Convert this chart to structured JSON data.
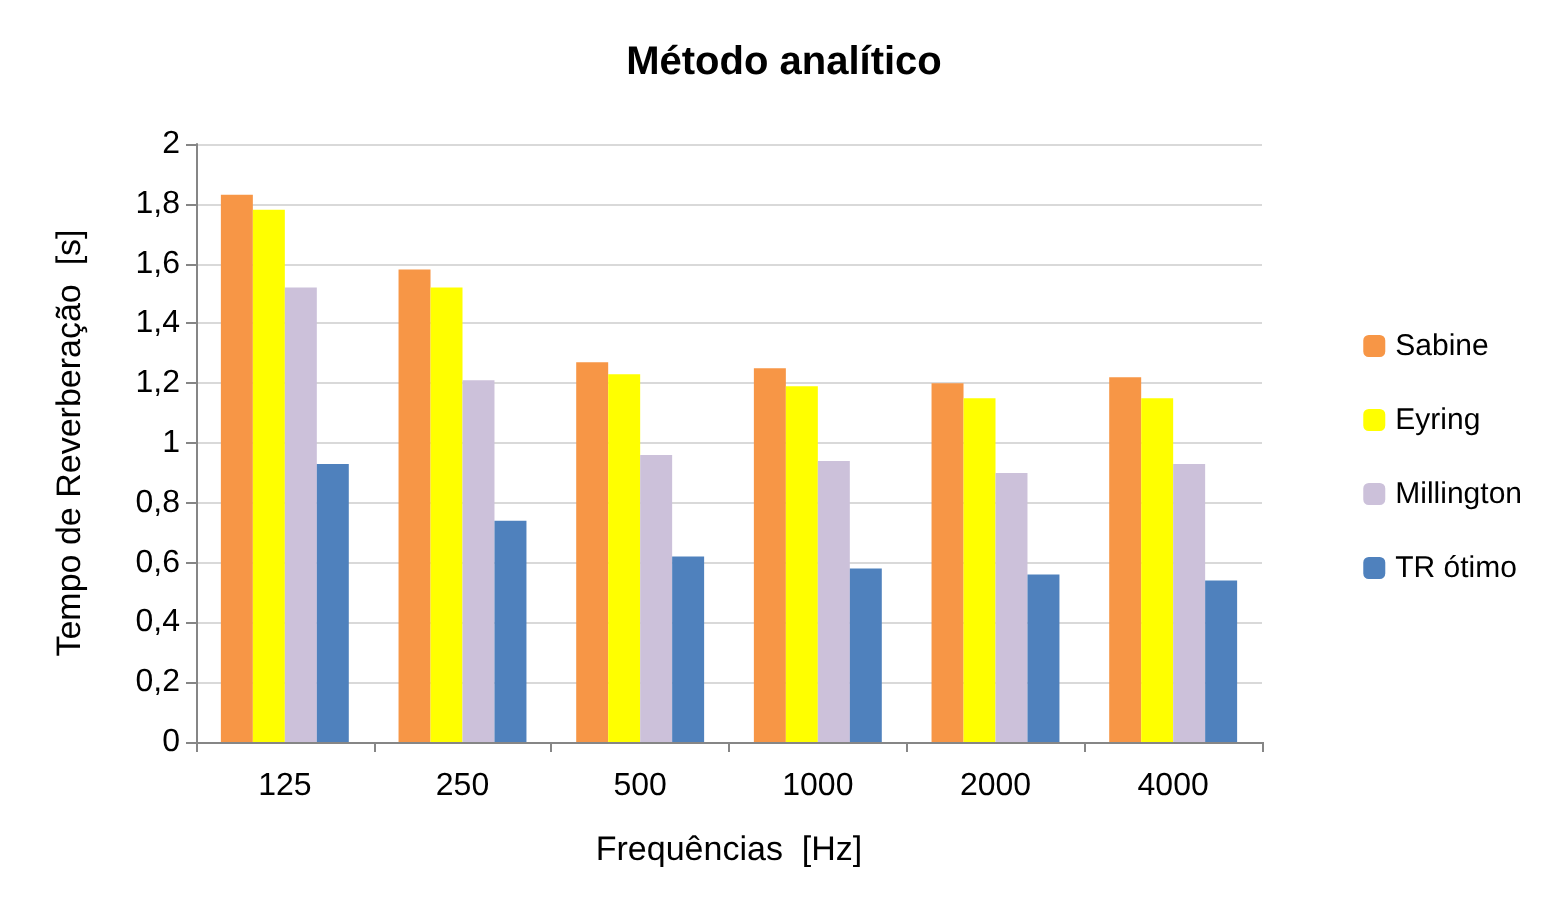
{
  "chart_data": {
    "type": "bar",
    "title": "Método analítico",
    "xlabel": "Frequências  [Hz]",
    "ylabel": "Tempo de Reverberação  [s]",
    "categories": [
      "125",
      "250",
      "500",
      "1000",
      "2000",
      "4000"
    ],
    "series": [
      {
        "name": "Sabine",
        "color": "#f79646",
        "values": [
          1.83,
          1.58,
          1.27,
          1.25,
          1.2,
          1.22
        ]
      },
      {
        "name": "Eyring",
        "color": "#ffff00",
        "values": [
          1.78,
          1.52,
          1.23,
          1.19,
          1.15,
          1.15
        ]
      },
      {
        "name": "Millington",
        "color": "#ccc1da",
        "values": [
          1.52,
          1.21,
          0.96,
          0.94,
          0.9,
          0.93
        ]
      },
      {
        "name": "TR ótimo",
        "color": "#4f81bd",
        "values": [
          0.93,
          0.74,
          0.62,
          0.58,
          0.56,
          0.54
        ]
      }
    ],
    "ylim": [
      0,
      2
    ],
    "yticks": [
      0,
      {
        "value": 0.2,
        "label": "0,2"
      },
      {
        "value": 0.4,
        "label": "0,4"
      },
      {
        "value": 0.6,
        "label": "0,6"
      },
      {
        "value": 0.8,
        "label": "0,8"
      },
      1,
      {
        "value": 1.2,
        "label": "1,2"
      },
      {
        "value": 1.4,
        "label": "1,4"
      },
      {
        "value": 1.6,
        "label": "1,6"
      },
      {
        "value": 1.8,
        "label": "1,8"
      },
      2
    ],
    "grid": "y",
    "legend": "right"
  }
}
